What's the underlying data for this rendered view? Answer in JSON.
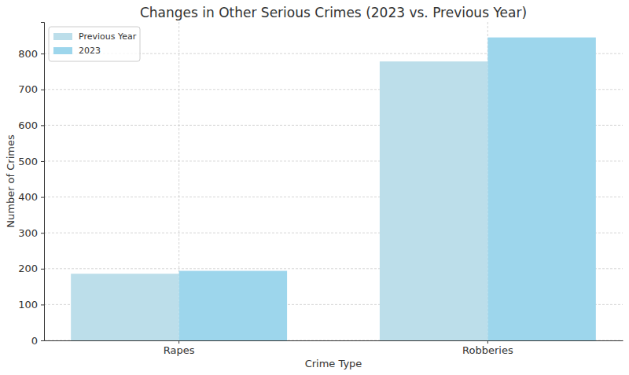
{
  "chart_data": {
    "type": "bar",
    "title": "Changes in Other Serious Crimes (2023 vs. Previous Year)",
    "x_label": "Crime Type",
    "y_label": "Number of Crimes",
    "categories": [
      "Rapes",
      "Robberies"
    ],
    "series": [
      {
        "name": "Previous Year",
        "color": "#bcdeea",
        "values": [
          186,
          778
        ]
      },
      {
        "name": "2023",
        "color": "#9dd6ec",
        "values": [
          194,
          845
        ]
      }
    ],
    "ylim": [
      0,
      888
    ],
    "yticks": [
      0,
      100,
      200,
      300,
      400,
      500,
      600,
      700,
      800
    ],
    "grid": true,
    "legend": "upper left"
  }
}
